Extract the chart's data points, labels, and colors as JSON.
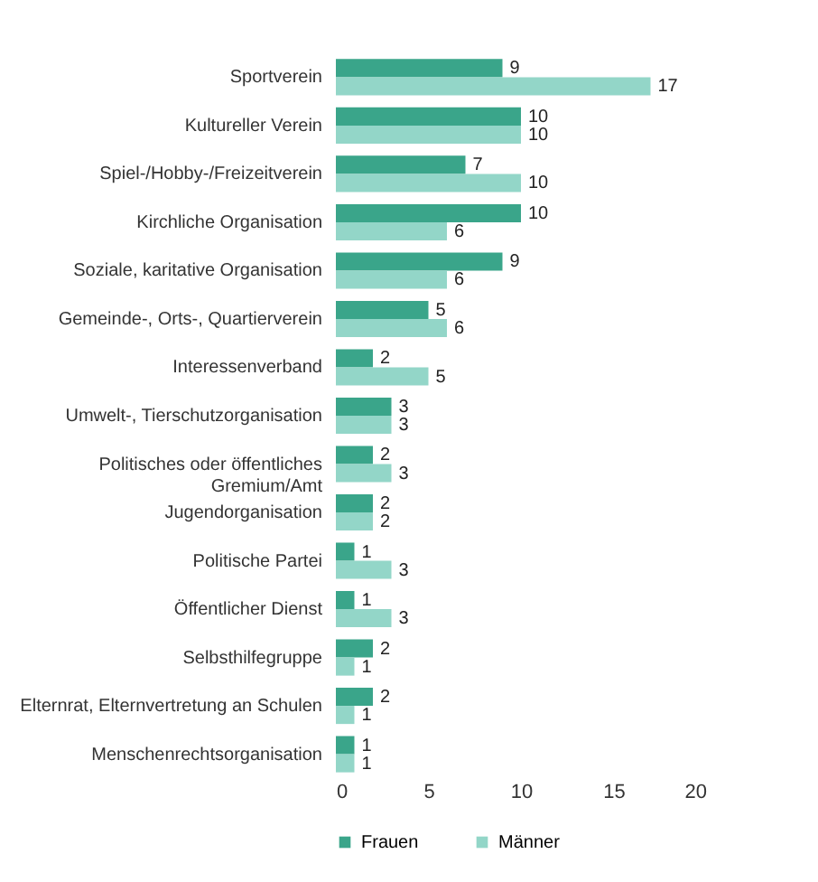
{
  "chart_data": {
    "type": "bar",
    "orientation": "horizontal",
    "categories": [
      "Sportverein",
      "Kultureller Verein",
      "Spiel-/Hobby-/Freizeitverein",
      "Kirchliche Organisation",
      "Soziale, karitative Organisation",
      "Gemeinde-, Orts-, Quartierverein",
      "Interessenverband",
      "Umwelt-, Tierschutzorganisation",
      "Politisches oder öffentliches Gremium/Amt",
      "Jugendorganisation",
      "Politische Partei",
      "Öffentlicher Dienst",
      "Selbsthilfegruppe",
      "Elternrat, Elternvertretung an Schulen",
      "Menschenrechtsorganisation"
    ],
    "series": [
      {
        "name": "Frauen",
        "color": "#3aa58a",
        "values": [
          9,
          10,
          7,
          10,
          9,
          5,
          2,
          3,
          2,
          2,
          1,
          1,
          2,
          2,
          1
        ]
      },
      {
        "name": "Männer",
        "color": "#93d6c8",
        "values": [
          17,
          10,
          10,
          6,
          6,
          6,
          5,
          3,
          3,
          2,
          3,
          3,
          1,
          1,
          1
        ]
      }
    ],
    "xlim": [
      0,
      20
    ],
    "xticks": [
      0,
      5,
      10,
      15,
      20
    ],
    "data_labels": true,
    "legend": "bottom",
    "grid": false
  }
}
